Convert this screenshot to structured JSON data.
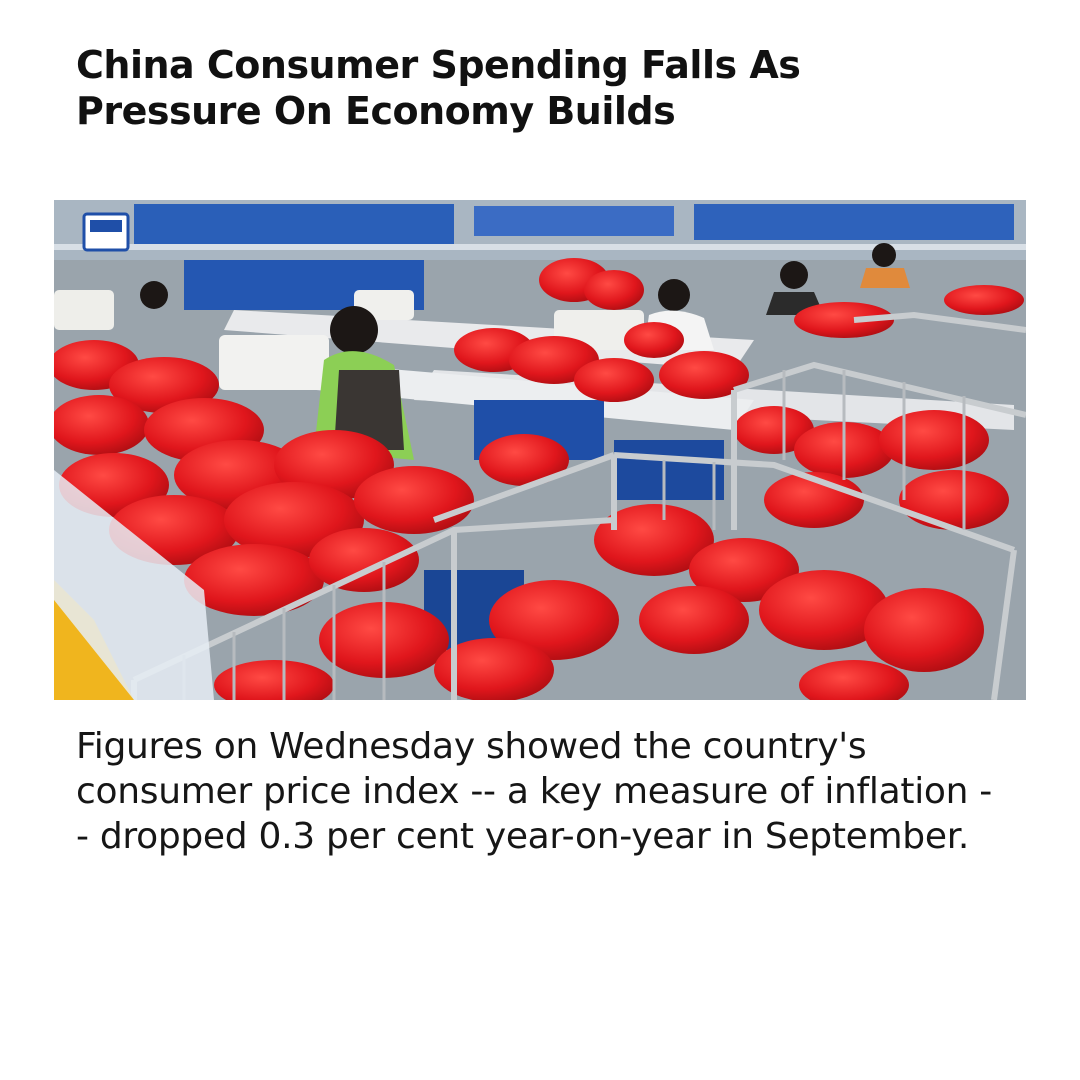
{
  "article": {
    "headline": "China Consumer Spending Falls As Pressure On Economy Builds",
    "body": "Figures on Wednesday showed the country's consumer price index -- a key measure of inflation -- dropped 0.3 per cent year-on-year in September."
  },
  "colors": {
    "background": "#ffffff",
    "text": "#111111",
    "product_red": "#e0161c",
    "bin_blue": "#1f4fa8"
  }
}
